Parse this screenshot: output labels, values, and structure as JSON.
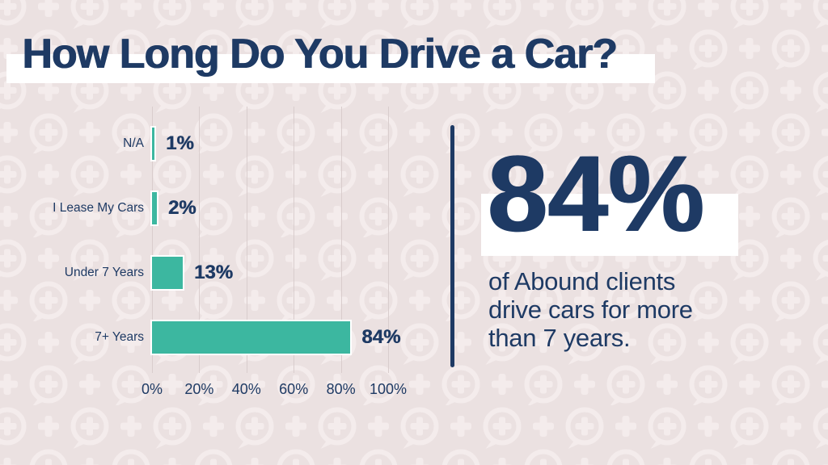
{
  "title": {
    "text": "How Long Do You Drive a Car?"
  },
  "colors": {
    "background": "#ebe1e1",
    "pattern": "#f4ecec",
    "navy": "#1e3a64",
    "teal": "#3cb7a0",
    "gridline": "#d9cdcd",
    "highlight": "#ffffff"
  },
  "chart_data": {
    "type": "bar",
    "orientation": "horizontal",
    "categories": [
      "N/A",
      "I Lease My Cars",
      "Under 7 Years",
      "7+ Years"
    ],
    "values": [
      1,
      2,
      13,
      84
    ],
    "value_labels": [
      "1%",
      "2%",
      "13%",
      "84%"
    ],
    "xlabel": "",
    "ylabel": "",
    "xlim": [
      0,
      100
    ],
    "xticks": [
      "0%",
      "20%",
      "40%",
      "60%",
      "80%",
      "100%"
    ],
    "grid": true,
    "legend": false,
    "bar_color": "#3cb7a0"
  },
  "callout": {
    "stat": "84%",
    "description_lines": [
      "of Abound clients",
      "drive cars for more",
      "than 7 years."
    ]
  }
}
